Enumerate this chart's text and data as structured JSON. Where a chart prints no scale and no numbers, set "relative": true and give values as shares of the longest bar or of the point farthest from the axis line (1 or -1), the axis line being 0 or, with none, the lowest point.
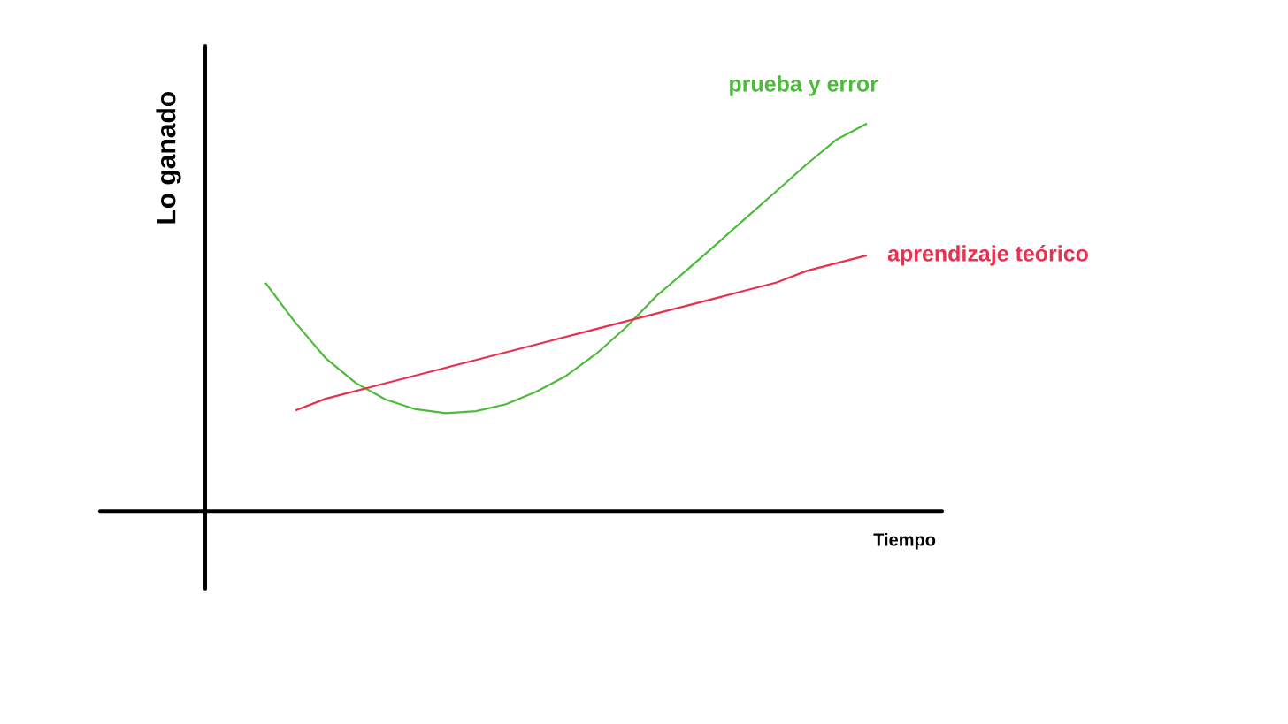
{
  "chart_data": {
    "type": "line",
    "relative": true,
    "xlabel": "Tiempo",
    "ylabel": "Lo ganado",
    "categories": [
      null,
      null,
      null,
      null,
      null,
      null,
      null,
      null,
      null,
      null,
      null,
      null,
      null,
      null,
      null,
      null,
      null,
      null,
      null,
      null,
      null,
      null,
      null
    ],
    "series": [
      {
        "name": "prueba y error",
        "color": "#4dbb3a",
        "values": [
          null,
          null,
          0.589,
          0.486,
          0.395,
          0.331,
          0.288,
          0.263,
          0.253,
          0.258,
          0.276,
          0.308,
          0.349,
          0.406,
          0.475,
          0.555,
          0.621,
          0.689,
          0.758,
          0.826,
          0.895,
          0.959,
          1
        ]
      },
      {
        "name": "aprendizaje teórico",
        "color": "#e8304f",
        "values": [
          null,
          null,
          null,
          0.26,
          0.29,
          0.31,
          0.33,
          0.35,
          0.37,
          0.39,
          0.41,
          0.43,
          0.45,
          0.47,
          0.49,
          0.51,
          0.53,
          0.55,
          0.57,
          0.59,
          0.62,
          0.64,
          0.66
        ]
      }
    ]
  }
}
